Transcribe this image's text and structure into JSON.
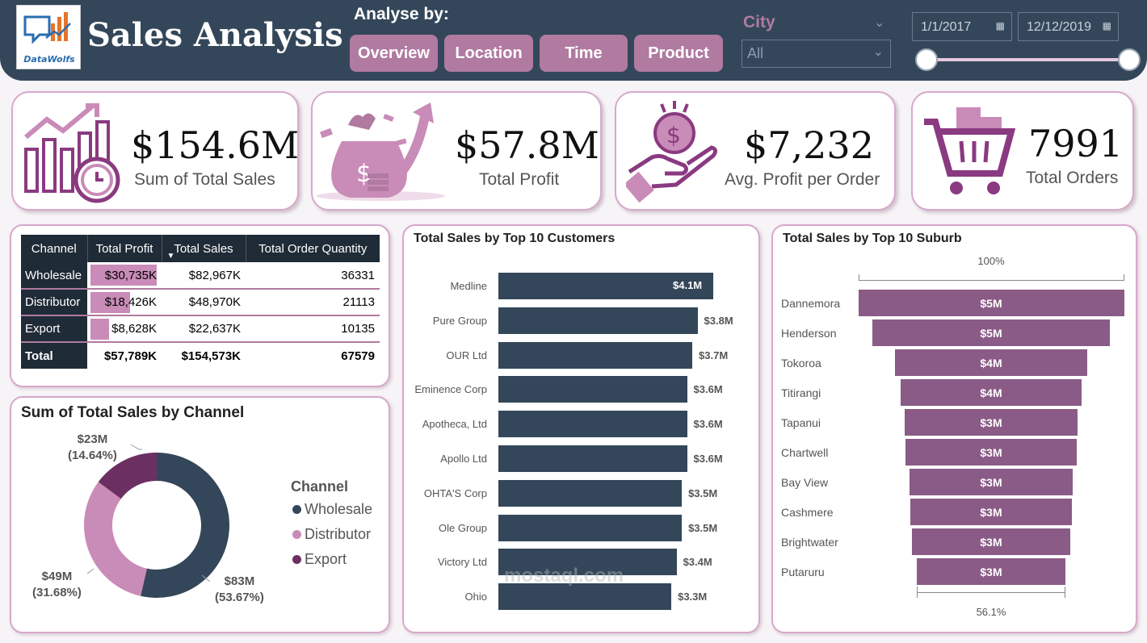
{
  "header": {
    "logo_text": "DataWolfs",
    "title": "Sales Analysis",
    "analyse_label": "Analyse by:",
    "nav": [
      "Overview",
      "Location",
      "Time",
      "Product"
    ],
    "city_label": "City",
    "city_value": "All",
    "date_start": "1/1/2017",
    "date_end": "12/12/2019"
  },
  "kpis": [
    {
      "value": "$154.6M",
      "label": "Sum of Total Sales",
      "icon": "sales-chart-icon"
    },
    {
      "value": "$57.8M",
      "label": "Total Profit",
      "icon": "money-bag-icon"
    },
    {
      "value": "$7,232",
      "label": "Avg. Profit per Order",
      "icon": "hand-coin-icon"
    },
    {
      "value": "7991",
      "label": "Total Orders",
      "icon": "shopping-cart-icon"
    }
  ],
  "table": {
    "headers": [
      "Channel",
      "Total Profit",
      "Total Sales",
      "Total Order Quantity"
    ],
    "rows": [
      {
        "channel": "Wholesale",
        "profit": "$30,735K",
        "sales": "$82,967K",
        "qty": "36331",
        "profit_value": 30735
      },
      {
        "channel": "Distributor",
        "profit": "$18,426K",
        "sales": "$48,970K",
        "qty": "21113",
        "profit_value": 18426
      },
      {
        "channel": "Export",
        "profit": "$8,628K",
        "sales": "$22,637K",
        "qty": "10135",
        "profit_value": 8628
      }
    ],
    "total": {
      "channel": "Total",
      "profit": "$57,789K",
      "sales": "$154,573K",
      "qty": "67579"
    }
  },
  "donut": {
    "title": "Sum of Total Sales by Channel",
    "legend_title": "Channel",
    "colors": {
      "Wholesale": "#34475a",
      "Distributor": "#c98bb7",
      "Export": "#6b2f62"
    },
    "labels": {
      "Wholesale": [
        "$83M",
        "(53.67%)"
      ],
      "Distributor": [
        "$49M",
        "(31.68%)"
      ],
      "Export": [
        "$23M",
        "(14.64%)"
      ]
    }
  },
  "chart_data": [
    {
      "type": "pie",
      "title": "Sum of Total Sales by Channel",
      "categories": [
        "Wholesale",
        "Distributor",
        "Export"
      ],
      "values": [
        83,
        49,
        23
      ],
      "percents": [
        53.67,
        31.68,
        14.64
      ],
      "legend": "right"
    },
    {
      "type": "bar",
      "title": "Total Sales by Top 10 Customers",
      "categories": [
        "Medline",
        "Pure Group",
        "OUR Ltd",
        "Eminence Corp",
        "Apotheca, Ltd",
        "Apollo Ltd",
        "OHTA'S Corp",
        "Ole Group",
        "Victory Ltd",
        "Ohio"
      ],
      "values": [
        4.1,
        3.8,
        3.7,
        3.6,
        3.6,
        3.6,
        3.5,
        3.5,
        3.4,
        3.3
      ],
      "labels": [
        "$4.1M",
        "$3.8M",
        "$3.7M",
        "$3.6M",
        "$3.6M",
        "$3.6M",
        "$3.5M",
        "$3.5M",
        "$3.4M",
        "$3.3M"
      ],
      "color": "#34475a"
    },
    {
      "type": "bar",
      "title": "Total Sales by Top 10 Suburb",
      "categories": [
        "Dannemora",
        "Henderson",
        "Tokoroa",
        "Titirangi",
        "Tapanui",
        "Chartwell",
        "Bay View",
        "Cashmere",
        "Brightwater",
        "Putaruru"
      ],
      "values": [
        100,
        89.6,
        72.3,
        68.3,
        65.2,
        64.6,
        61.6,
        61.0,
        59.5,
        56.1
      ],
      "labels": [
        "$5M",
        "$5M",
        "$4M",
        "$4M",
        "$3M",
        "$3M",
        "$3M",
        "$3M",
        "$3M",
        "$3M"
      ],
      "top_label": "100%",
      "bottom_label": "56.1%",
      "color": "#8a5b86"
    }
  ],
  "watermark": "mostaql.com"
}
